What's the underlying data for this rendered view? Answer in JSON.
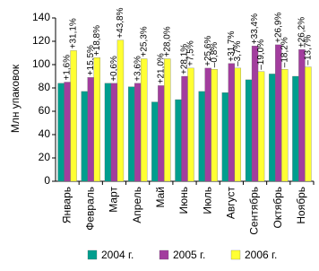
{
  "chart_data": {
    "type": "bar",
    "y_label": "Млн упаковок",
    "categories": [
      "Январь",
      "Февраль",
      "Март",
      "Апрель",
      "Май",
      "Июнь",
      "Июль",
      "Август",
      "Сентябрь",
      "Октябрь",
      "Ноябрь"
    ],
    "series": [
      {
        "name": "2004 г.",
        "color": "#009e8e",
        "values": [
          84,
          77,
          84,
          81,
          68,
          70,
          77,
          76,
          87,
          92,
          90
        ]
      },
      {
        "name": "2005 г.",
        "color": "#a23d9e",
        "values": [
          85,
          89,
          84,
          84,
          82,
          90,
          97,
          101,
          116,
          117,
          113
        ],
        "growth_labels": [
          "+1,6%",
          "+15,5%",
          "+0,6%",
          "+3,6%",
          "+21,0%",
          "+28,1%",
          "+25,6%",
          "+31,7%",
          "+33,4%",
          "+26,9%",
          "+26,2%"
        ]
      },
      {
        "name": "2006 г.",
        "color": "#ffff33",
        "values": [
          112,
          106,
          121,
          105,
          105,
          97,
          96,
          97,
          94,
          96,
          98
        ],
        "growth_labels": [
          "+31,1%",
          "+18,8%",
          "+43,8%",
          "+25,3%",
          "+28,0%",
          "+7,5%",
          "–0,8%",
          "–3,7%",
          "–19,0%",
          "–18,2%",
          "–13,7%"
        ]
      }
    ],
    "ylim": [
      0,
      140
    ],
    "yticks": [
      0,
      20,
      40,
      60,
      80,
      100,
      120,
      140
    ]
  }
}
